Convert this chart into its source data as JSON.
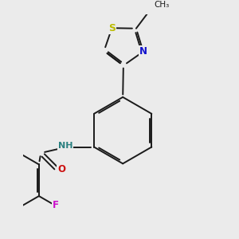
{
  "background_color": "#ebebeb",
  "figsize": [
    3.0,
    3.0
  ],
  "dpi": 100,
  "bond_color": "#1a1a1a",
  "bond_width": 1.4,
  "dbo": 0.055,
  "atom_colors": {
    "S": "#bbbb00",
    "N": "#1010cc",
    "NH": "#2a8080",
    "O": "#cc1010",
    "F": "#cc10cc"
  },
  "fs": 8.5,
  "fs_methyl": 7.5,
  "bg": "#ebebeb"
}
